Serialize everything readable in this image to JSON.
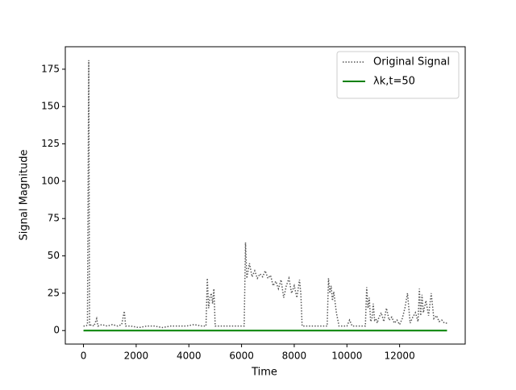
{
  "chart_data": {
    "type": "line",
    "xlabel": "Time",
    "ylabel": "Signal Magnitude",
    "xlim": [
      -690,
      14490
    ],
    "ylim": [
      -9.05,
      190.05
    ],
    "xticks": [
      0,
      2000,
      4000,
      6000,
      8000,
      10000,
      12000
    ],
    "yticks": [
      0,
      25,
      50,
      75,
      100,
      125,
      150,
      175
    ],
    "legend": "upper right",
    "series": [
      {
        "name": "Original Signal",
        "color": "#555555",
        "style": "dotted",
        "x": [
          0,
          100,
          150,
          200,
          230,
          300,
          400,
          500,
          550,
          700,
          900,
          1100,
          1300,
          1450,
          1550,
          1600,
          1800,
          2100,
          2400,
          2700,
          3000,
          3300,
          3600,
          3900,
          4200,
          4500,
          4650,
          4700,
          4750,
          4800,
          4850,
          4900,
          4950,
          5000,
          5300,
          5600,
          5900,
          6100,
          6150,
          6200,
          6300,
          6400,
          6500,
          6600,
          6700,
          6800,
          6900,
          7000,
          7100,
          7200,
          7300,
          7400,
          7500,
          7600,
          7700,
          7800,
          7900,
          8000,
          8100,
          8200,
          8250,
          8300,
          8400,
          8700,
          9000,
          9250,
          9300,
          9350,
          9400,
          9450,
          9500,
          9600,
          9700,
          9800,
          10000,
          10100,
          10200,
          10400,
          10600,
          10700,
          10750,
          10800,
          10850,
          10900,
          10950,
          11000,
          11050,
          11100,
          11150,
          11200,
          11300,
          11400,
          11500,
          11600,
          11700,
          11800,
          11900,
          12000,
          12100,
          12200,
          12300,
          12400,
          12500,
          12600,
          12700,
          12750,
          12800,
          12850,
          12900,
          13000,
          13100,
          13200,
          13300,
          13400,
          13500,
          13600,
          13700,
          13800
        ],
        "values": [
          3,
          3,
          4,
          181,
          3,
          4,
          3,
          8,
          3,
          4,
          3,
          4,
          3,
          4,
          13,
          3,
          3,
          2,
          3,
          3,
          2,
          3,
          3,
          3,
          4,
          3,
          3,
          35,
          15,
          22,
          25,
          18,
          28,
          3,
          3,
          3,
          3,
          3,
          59,
          35,
          45,
          36,
          40,
          35,
          38,
          36,
          40,
          35,
          37,
          30,
          33,
          28,
          34,
          22,
          30,
          35,
          25,
          30,
          22,
          34,
          25,
          3,
          3,
          3,
          3,
          3,
          35,
          25,
          30,
          20,
          26,
          12,
          3,
          3,
          3,
          7,
          3,
          3,
          3,
          3,
          29,
          15,
          22,
          6,
          8,
          18,
          7,
          8,
          5,
          8,
          12,
          6,
          15,
          7,
          9,
          5,
          7,
          4,
          8,
          15,
          25,
          5,
          9,
          12,
          6,
          28,
          10,
          24,
          12,
          20,
          10,
          25,
          8,
          10,
          6,
          7,
          5,
          5
        ]
      },
      {
        "name": "λk,t=50",
        "color": "#008000",
        "style": "solid",
        "x": [
          0,
          13800
        ],
        "values": [
          0,
          0
        ]
      }
    ]
  }
}
